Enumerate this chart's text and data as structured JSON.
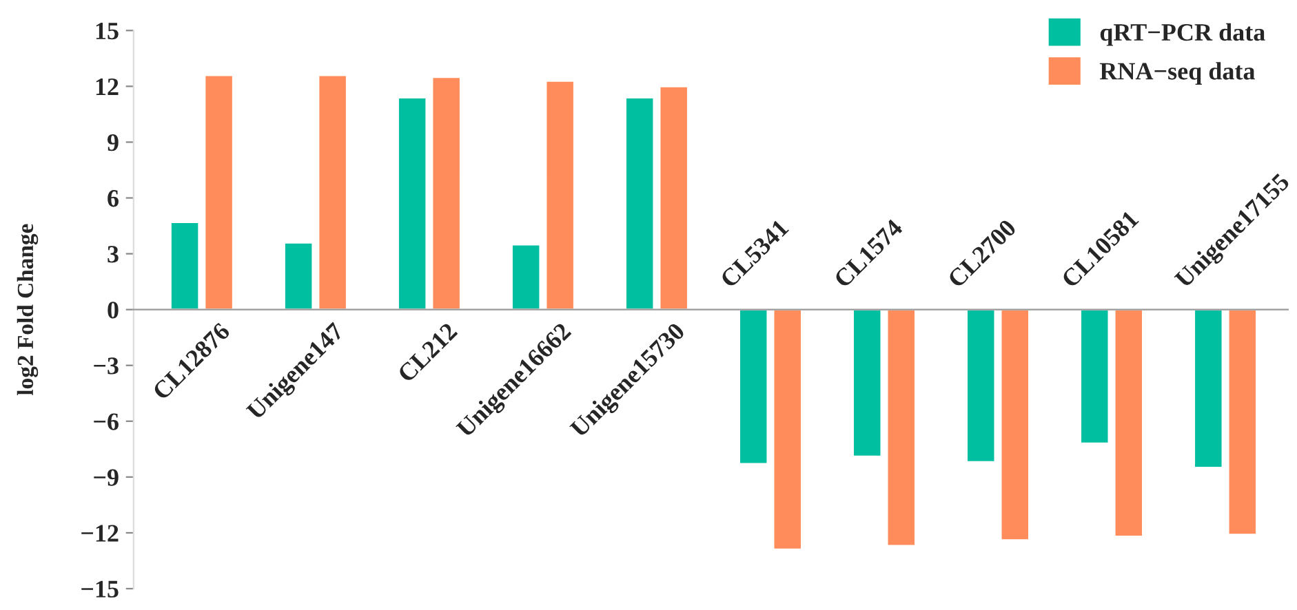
{
  "chart_data": {
    "type": "bar",
    "ylabel": "log2 Fold Change",
    "categories": [
      "CL12876",
      "Unigene147",
      "CL212",
      "Unigene16662",
      "Unigene15730",
      "CL5341",
      "CL1574",
      "CL2700",
      "CL10581",
      "Unigene17155"
    ],
    "series": [
      {
        "name": "qRT−PCR data",
        "color": "#00bfa0",
        "values": [
          4.7,
          3.6,
          11.4,
          3.5,
          11.4,
          -8.3,
          -7.9,
          -8.2,
          -7.2,
          -8.5
        ]
      },
      {
        "name": "RNA−seq data",
        "color": "#ff8c5a",
        "values": [
          12.6,
          12.6,
          12.5,
          12.3,
          12.0,
          -12.9,
          -12.7,
          -12.4,
          -12.2,
          -12.1
        ]
      }
    ],
    "ylim": [
      -15,
      15
    ],
    "yticks": [
      -15,
      -12,
      -9,
      -6,
      -3,
      0,
      3,
      6,
      9,
      12,
      15
    ],
    "grid": false,
    "legend": "top right"
  }
}
